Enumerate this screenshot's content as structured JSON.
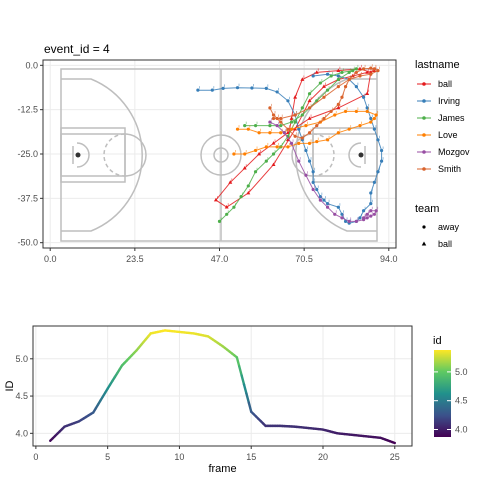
{
  "chart_data": [
    {
      "type": "scatter",
      "title": "event_id = 4",
      "xlabel": "",
      "ylabel": "",
      "xlim": [
        -2,
        96
      ],
      "ylim": [
        -51.5,
        1.5
      ],
      "x_ticks": [
        0.0,
        23.5,
        47.0,
        70.5,
        94.0
      ],
      "x_tick_labels": [
        "0.0",
        "23.5",
        "47.0",
        "70.5",
        "94.0"
      ],
      "y_ticks": [
        0.0,
        -12.5,
        -25.0,
        -37.5,
        -50.0
      ],
      "y_tick_labels": [
        "0.0",
        "-12.5",
        "-25.0",
        "-37.5",
        "-50.0"
      ],
      "grid": true,
      "background": "basketball-court",
      "legend_color_title": "lastname",
      "legend_shape_title": "team",
      "shape_legend": [
        {
          "label": "away",
          "shape": "circle"
        },
        {
          "label": "ball",
          "shape": "triangle"
        }
      ],
      "series": [
        {
          "name": "ball",
          "color": "#E41A1C",
          "shape": "triangle",
          "points": [
            [
              66,
              -21
            ],
            [
              67,
              -15
            ],
            [
              68,
              -9
            ],
            [
              70,
              -4
            ],
            [
              74,
              -2
            ],
            [
              80,
              -1.5
            ],
            [
              86,
              -1
            ],
            [
              89,
              -2
            ],
            [
              88,
              -8
            ],
            [
              80,
              -12
            ],
            [
              72,
              -15
            ],
            [
              66,
              -19
            ],
            [
              62,
              -22
            ],
            [
              58,
              -25
            ],
            [
              54,
              -29
            ],
            [
              50,
              -33
            ],
            [
              46,
              -38
            ],
            [
              49,
              -40
            ],
            [
              55,
              -36
            ],
            [
              62,
              -28
            ],
            [
              68,
              -18
            ],
            [
              72,
              -10
            ],
            [
              76,
              -6
            ],
            [
              80,
              -4
            ],
            [
              84,
              -3
            ],
            [
              88,
              -2
            ],
            [
              90,
              -1.5
            ]
          ]
        },
        {
          "name": "Irving",
          "color": "#377EB8",
          "shape": "circle",
          "points": [
            [
              41,
              -7
            ],
            [
              45,
              -7
            ],
            [
              48,
              -6.5
            ],
            [
              52,
              -6.3
            ],
            [
              56,
              -6.4
            ],
            [
              60,
              -6.5
            ],
            [
              63,
              -7.5
            ],
            [
              66,
              -10
            ],
            [
              68,
              -14
            ],
            [
              69,
              -18
            ],
            [
              70,
              -21
            ],
            [
              71,
              -24
            ],
            [
              72,
              -27
            ],
            [
              73,
              -30
            ],
            [
              73,
              -33
            ],
            [
              74,
              -35
            ],
            [
              75,
              -37
            ],
            [
              76,
              -38
            ],
            [
              77,
              -39
            ],
            [
              80,
              -40
            ],
            [
              81,
              -42
            ],
            [
              82,
              -44
            ],
            [
              83,
              -44.5
            ],
            [
              85,
              -44
            ],
            [
              86,
              -43
            ],
            [
              87,
              -41
            ],
            [
              89,
              -39
            ],
            [
              89,
              -36
            ],
            [
              90,
              -33
            ],
            [
              91,
              -30
            ],
            [
              92,
              -27
            ],
            [
              92,
              -24
            ],
            [
              91,
              -21
            ],
            [
              90,
              -18
            ],
            [
              89,
              -15
            ],
            [
              88,
              -12
            ],
            [
              87,
              -9
            ],
            [
              85,
              -6
            ],
            [
              83,
              -4
            ],
            [
              80,
              -3
            ],
            [
              77,
              -2.5
            ],
            [
              73,
              -3
            ]
          ]
        },
        {
          "name": "James",
          "color": "#4DAF4A",
          "shape": "circle",
          "points": [
            [
              47,
              -44
            ],
            [
              49,
              -42
            ],
            [
              51,
              -40
            ],
            [
              53,
              -37
            ],
            [
              55,
              -34
            ],
            [
              57,
              -30
            ],
            [
              60,
              -27
            ],
            [
              62,
              -25
            ],
            [
              64,
              -23
            ],
            [
              66,
              -20
            ],
            [
              68,
              -16
            ],
            [
              70,
              -12
            ],
            [
              72,
              -8
            ],
            [
              75,
              -5
            ],
            [
              78,
              -3
            ],
            [
              81,
              -2
            ],
            [
              84,
              -1.5
            ],
            [
              85,
              -1
            ],
            [
              83,
              -2
            ],
            [
              80,
              -4
            ],
            [
              77,
              -7
            ],
            [
              74,
              -10
            ],
            [
              70,
              -14
            ],
            [
              67,
              -16
            ],
            [
              64,
              -17
            ],
            [
              61,
              -17
            ],
            [
              57,
              -17
            ],
            [
              54,
              -17
            ]
          ]
        },
        {
          "name": "Love",
          "color": "#FF7F00",
          "shape": "circle",
          "points": [
            [
              51,
              -25
            ],
            [
              54,
              -25
            ],
            [
              57,
              -24
            ],
            [
              60,
              -23
            ],
            [
              63,
              -23
            ],
            [
              66,
              -23
            ],
            [
              69,
              -22
            ],
            [
              72,
              -22
            ],
            [
              74,
              -21.5
            ],
            [
              77,
              -21
            ],
            [
              80,
              -19
            ],
            [
              83,
              -18
            ],
            [
              86,
              -17
            ],
            [
              89,
              -16
            ],
            [
              90,
              -15
            ],
            [
              90.5,
              -14
            ],
            [
              88,
              -13
            ],
            [
              85,
              -13
            ],
            [
              82,
              -13
            ],
            [
              79,
              -14
            ],
            [
              75,
              -16
            ],
            [
              71,
              -17
            ],
            [
              67,
              -18
            ],
            [
              64,
              -19
            ],
            [
              61,
              -19
            ],
            [
              58,
              -19
            ],
            [
              55,
              -18
            ],
            [
              52,
              -18
            ]
          ]
        },
        {
          "name": "Mozgov",
          "color": "#984EA3",
          "shape": "circle",
          "points": [
            [
              61,
              -16
            ],
            [
              63,
              -17
            ],
            [
              65,
              -19
            ],
            [
              67,
              -22
            ],
            [
              69,
              -27
            ],
            [
              71,
              -31
            ],
            [
              73,
              -35
            ],
            [
              75,
              -38
            ],
            [
              77,
              -40
            ],
            [
              79,
              -42
            ],
            [
              81,
              -43
            ],
            [
              83,
              -44
            ],
            [
              85,
              -44
            ],
            [
              87,
              -43.5
            ],
            [
              88,
              -43
            ],
            [
              89,
              -42.5
            ],
            [
              90,
              -42
            ],
            [
              90.5,
              -41
            ],
            [
              89,
              -41
            ],
            [
              88,
              -42
            ],
            [
              87,
              -43
            ]
          ]
        },
        {
          "name": "Smith",
          "color": "#D9622B",
          "shape": "circle",
          "points": [
            [
              61,
              -12
            ],
            [
              62,
              -14
            ],
            [
              63,
              -15
            ],
            [
              64,
              -16
            ],
            [
              66,
              -18
            ],
            [
              68,
              -20
            ],
            [
              70,
              -20.5
            ],
            [
              72,
              -19
            ],
            [
              74,
              -17
            ],
            [
              76,
              -15
            ],
            [
              78,
              -13
            ],
            [
              80,
              -11
            ],
            [
              81,
              -9
            ],
            [
              82,
              -6
            ],
            [
              83,
              -4
            ],
            [
              85,
              -2
            ],
            [
              87,
              -1
            ],
            [
              89,
              -0.8
            ],
            [
              90,
              -1
            ],
            [
              91,
              -1.5
            ],
            [
              89,
              -2.5
            ],
            [
              86,
              -3
            ],
            [
              83,
              -4
            ],
            [
              80,
              -6
            ],
            [
              76,
              -9
            ],
            [
              72,
              -12
            ],
            [
              68,
              -14
            ],
            [
              64,
              -15
            ],
            [
              62,
              -15
            ]
          ]
        }
      ]
    },
    {
      "type": "line",
      "title": "",
      "xlabel": "frame",
      "ylabel": "ID",
      "xlim": [
        -0.2,
        26.2
      ],
      "ylim": [
        3.83,
        5.44
      ],
      "x_ticks": [
        0,
        5,
        10,
        15,
        20,
        25
      ],
      "x_tick_labels": [
        "0",
        "5",
        "10",
        "15",
        "20",
        "25"
      ],
      "y_ticks": [
        4.0,
        4.5,
        5.0
      ],
      "y_tick_labels": [
        "4.0",
        "4.5",
        "5.0"
      ],
      "grid": true,
      "legend_title": "id",
      "legend_ticks": [
        4.0,
        4.5,
        5.0
      ],
      "legend_tick_labels": [
        "4.0",
        "4.5",
        "5.0"
      ],
      "color_range": [
        3.87,
        5.38
      ],
      "colormap": [
        "#440154",
        "#3B528B",
        "#21918C",
        "#5EC962",
        "#FDE725"
      ],
      "x": [
        1,
        2,
        3,
        4,
        5,
        6,
        7,
        8,
        9,
        10,
        11,
        12,
        13,
        14,
        15,
        16,
        17,
        18,
        19,
        20,
        21,
        22,
        23,
        24,
        25
      ],
      "y": [
        3.9,
        4.09,
        4.16,
        4.28,
        4.6,
        4.91,
        5.11,
        5.34,
        5.38,
        5.36,
        5.34,
        5.3,
        5.17,
        5.02,
        4.29,
        4.1,
        4.1,
        4.09,
        4.07,
        4.05,
        4.0,
        3.98,
        3.96,
        3.94,
        3.87
      ]
    }
  ]
}
